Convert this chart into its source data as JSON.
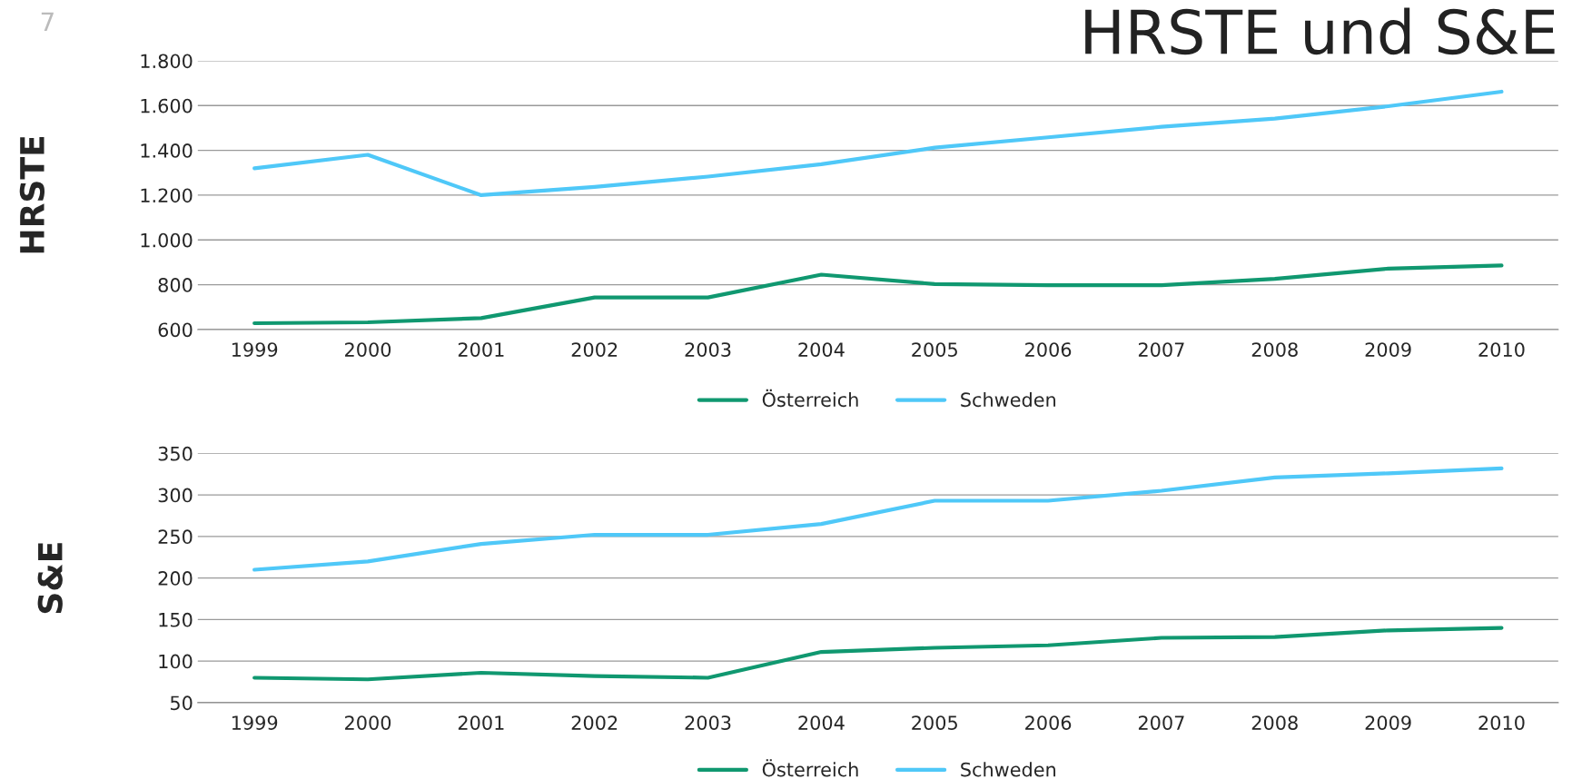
{
  "chart_data": [
    {
      "type": "line",
      "title": "HRSTE und S&E",
      "ylabel": "HRSTE",
      "annotations": [
        "7"
      ],
      "categories": [
        "1999",
        "2000",
        "2001",
        "2002",
        "2003",
        "2004",
        "2005",
        "2006",
        "2007",
        "2008",
        "2009",
        "2010"
      ],
      "series": [
        {
          "name": "Österreich",
          "color": "#109870",
          "values": [
            628,
            632,
            651,
            743,
            743,
            845,
            803,
            798,
            798,
            826,
            872,
            886
          ]
        },
        {
          "name": "Schweden",
          "color": "#4fc8f8",
          "values": [
            1320,
            1380,
            1200,
            1237,
            1283,
            1338,
            1412,
            1458,
            1505,
            1542,
            1597,
            1662
          ]
        }
      ],
      "ylim": [
        600,
        1800
      ],
      "yticks": [
        600,
        800,
        {
          "value": 1000,
          "label": "1.000"
        },
        {
          "value": 1200,
          "label": "1.200"
        },
        {
          "value": 1400,
          "label": "1.400"
        },
        {
          "value": 1600,
          "label": "1.600"
        },
        {
          "value": 1800,
          "label": "1.800"
        }
      ],
      "grid": "y",
      "legend": "bottom",
      "marker": "none",
      "line_style": "solid"
    },
    {
      "type": "line",
      "ylabel": "S&E",
      "categories": [
        "1999",
        "2000",
        "2001",
        "2002",
        "2003",
        "2004",
        "2005",
        "2006",
        "2007",
        "2008",
        "2009",
        "2010"
      ],
      "series": [
        {
          "name": "Österreich",
          "color": "#109870",
          "values": [
            80,
            78,
            86,
            82,
            80,
            111,
            116,
            119,
            128,
            129,
            137,
            140
          ]
        },
        {
          "name": "Schweden",
          "color": "#4fc8f8",
          "values": [
            210,
            220,
            241,
            252,
            252,
            265,
            293,
            293,
            305,
            321,
            326,
            332
          ]
        }
      ],
      "ylim": [
        50,
        350
      ],
      "yticks": [
        50,
        100,
        150,
        200,
        250,
        300,
        350
      ],
      "grid": "y",
      "legend": "bottom",
      "marker": "none",
      "line_style": "solid"
    }
  ]
}
